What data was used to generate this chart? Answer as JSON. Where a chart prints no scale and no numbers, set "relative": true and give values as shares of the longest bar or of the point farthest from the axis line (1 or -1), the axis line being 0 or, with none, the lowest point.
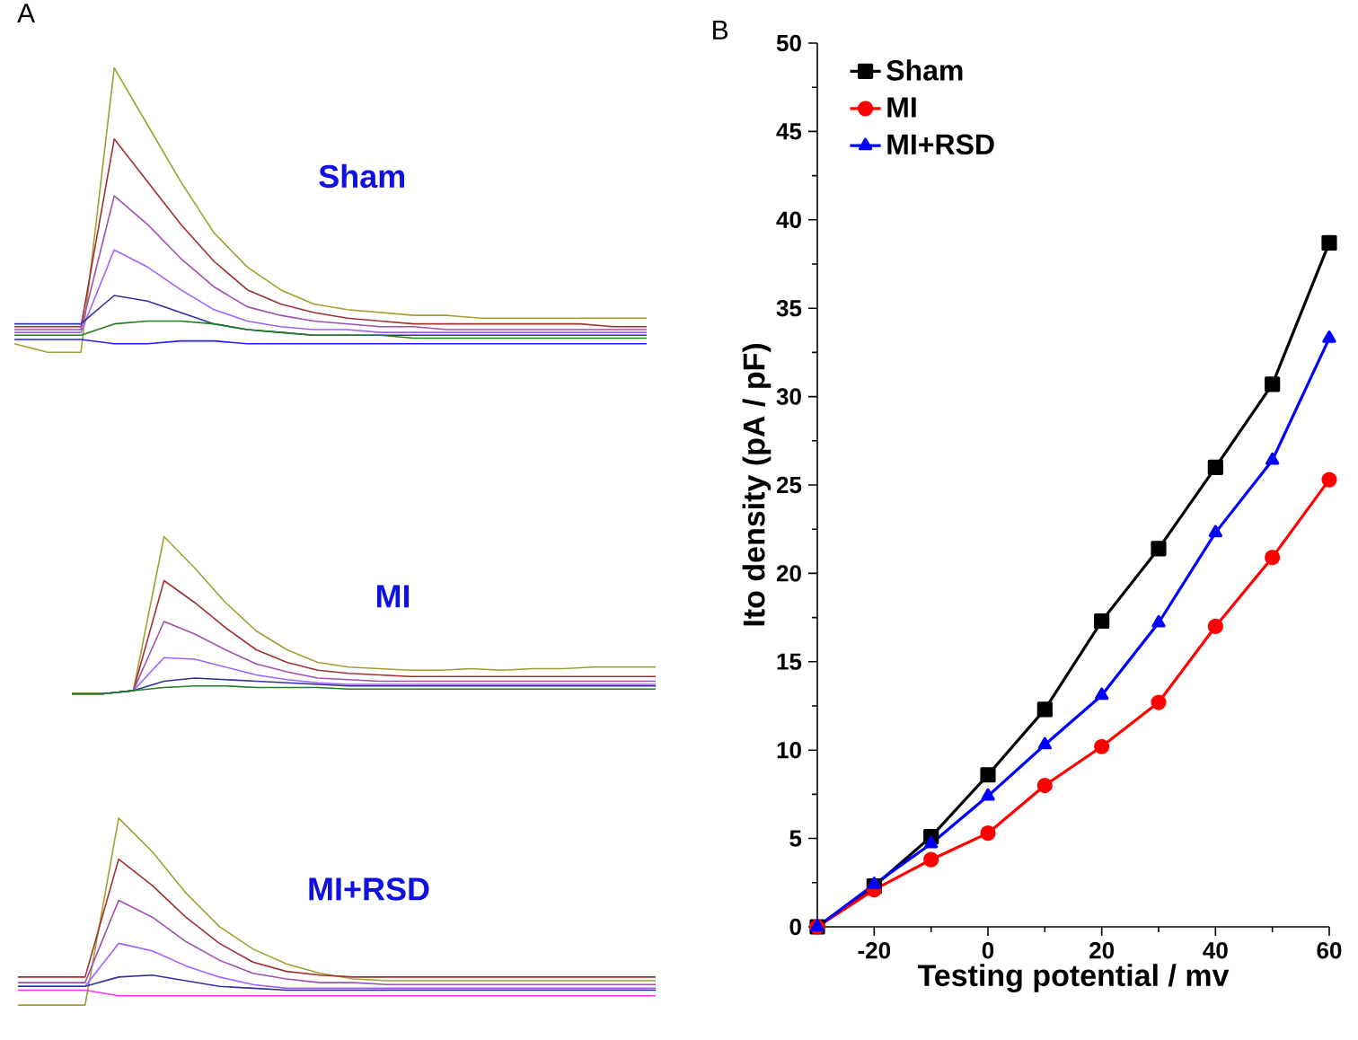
{
  "chart_data": [
    {
      "type": "line",
      "relative": true,
      "title": "A",
      "annotations": [
        "Sham"
      ],
      "categories": [
        null,
        null,
        null,
        null,
        null,
        null,
        null,
        null,
        null,
        null,
        null,
        null,
        null,
        null,
        null,
        null,
        null,
        null,
        null,
        null
      ],
      "series": [
        {
          "color": "#a0a030",
          "values": [
            0.03,
            0.0,
            0.0,
            1.0,
            0.8,
            0.6,
            0.42,
            0.3,
            0.22,
            0.17,
            0.15,
            0.14,
            0.13,
            0.13,
            0.12,
            0.12,
            0.12,
            0.12,
            0.12,
            0.12
          ]
        },
        {
          "color": "#a03030",
          "values": [
            0.09,
            0.09,
            0.09,
            0.75,
            0.6,
            0.45,
            0.32,
            0.22,
            0.17,
            0.14,
            0.12,
            0.11,
            0.1,
            0.1,
            0.1,
            0.1,
            0.1,
            0.1,
            0.09,
            0.09
          ]
        },
        {
          "color": "#a050b0",
          "values": [
            0.08,
            0.08,
            0.08,
            0.55,
            0.45,
            0.33,
            0.23,
            0.16,
            0.13,
            0.11,
            0.1,
            0.09,
            0.09,
            0.08,
            0.08,
            0.08,
            0.08,
            0.08,
            0.08,
            0.08
          ]
        },
        {
          "color": "#a060ff",
          "values": [
            0.07,
            0.07,
            0.07,
            0.36,
            0.3,
            0.22,
            0.15,
            0.11,
            0.09,
            0.08,
            0.08,
            0.07,
            0.07,
            0.07,
            0.07,
            0.07,
            0.07,
            0.07,
            0.07,
            0.07
          ]
        },
        {
          "color": "#3030a0",
          "values": [
            0.1,
            0.1,
            0.1,
            0.2,
            0.18,
            0.14,
            0.1,
            0.08,
            0.07,
            0.06,
            0.06,
            0.06,
            0.06,
            0.06,
            0.06,
            0.06,
            0.06,
            0.06,
            0.06,
            0.06
          ]
        },
        {
          "color": "#208020",
          "values": [
            0.06,
            0.06,
            0.06,
            0.1,
            0.11,
            0.11,
            0.1,
            0.08,
            0.07,
            0.06,
            0.06,
            0.06,
            0.05,
            0.05,
            0.05,
            0.05,
            0.05,
            0.05,
            0.05,
            0.05
          ]
        },
        {
          "color": "#2020ff",
          "values": [
            0.045,
            0.045,
            0.045,
            0.03,
            0.03,
            0.04,
            0.04,
            0.03,
            0.03,
            0.03,
            0.03,
            0.03,
            0.03,
            0.03,
            0.03,
            0.03,
            0.03,
            0.03,
            0.03,
            0.03
          ]
        }
      ]
    },
    {
      "type": "line",
      "relative": true,
      "annotations": [
        "MI"
      ],
      "categories": [
        null,
        null,
        null,
        null,
        null,
        null,
        null,
        null,
        null,
        null,
        null,
        null,
        null,
        null,
        null,
        null,
        null,
        null,
        null,
        null
      ],
      "series": [
        {
          "color": "#a0a030",
          "values": [
            0.0,
            0.0,
            0.02,
            1.0,
            0.8,
            0.58,
            0.4,
            0.28,
            0.2,
            0.17,
            0.16,
            0.15,
            0.15,
            0.16,
            0.15,
            0.16,
            0.16,
            0.17,
            0.17,
            0.17
          ]
        },
        {
          "color": "#a03030",
          "values": [
            0.0,
            0.0,
            0.02,
            0.72,
            0.58,
            0.42,
            0.28,
            0.2,
            0.15,
            0.13,
            0.12,
            0.11,
            0.11,
            0.11,
            0.11,
            0.11,
            0.11,
            0.11,
            0.11,
            0.11
          ]
        },
        {
          "color": "#a050b0",
          "values": [
            0.0,
            0.0,
            0.02,
            0.46,
            0.38,
            0.28,
            0.19,
            0.14,
            0.1,
            0.09,
            0.08,
            0.08,
            0.08,
            0.08,
            0.08,
            0.08,
            0.08,
            0.08,
            0.08,
            0.08
          ]
        },
        {
          "color": "#a060ff",
          "values": [
            0.0,
            0.0,
            0.02,
            0.23,
            0.22,
            0.17,
            0.12,
            0.09,
            0.07,
            0.06,
            0.06,
            0.06,
            0.06,
            0.06,
            0.06,
            0.06,
            0.06,
            0.06,
            0.06,
            0.06
          ]
        },
        {
          "color": "#3030a0",
          "values": [
            0.0,
            0.0,
            0.02,
            0.08,
            0.1,
            0.09,
            0.08,
            0.07,
            0.06,
            0.05,
            0.05,
            0.05,
            0.05,
            0.05,
            0.05,
            0.05,
            0.05,
            0.05,
            0.05,
            0.05
          ]
        },
        {
          "color": "#208020",
          "values": [
            0.0,
            0.0,
            0.02,
            0.04,
            0.05,
            0.05,
            0.04,
            0.04,
            0.04,
            0.03,
            0.03,
            0.03,
            0.03,
            0.03,
            0.03,
            0.03,
            0.03,
            0.03,
            0.03,
            0.03
          ]
        }
      ]
    },
    {
      "type": "line",
      "relative": true,
      "annotations": [
        "MI+RSD"
      ],
      "categories": [
        null,
        null,
        null,
        null,
        null,
        null,
        null,
        null,
        null,
        null,
        null,
        null,
        null,
        null,
        null,
        null,
        null,
        null,
        null,
        null
      ],
      "series": [
        {
          "color": "#a0a030",
          "values": [
            0.0,
            0.0,
            0.0,
            1.0,
            0.82,
            0.6,
            0.42,
            0.3,
            0.22,
            0.17,
            0.14,
            0.13,
            0.13,
            0.13,
            0.13,
            0.13,
            0.13,
            0.13,
            0.13,
            0.13
          ]
        },
        {
          "color": "#a03030",
          "values": [
            0.15,
            0.15,
            0.15,
            0.78,
            0.64,
            0.47,
            0.33,
            0.23,
            0.18,
            0.16,
            0.15,
            0.15,
            0.15,
            0.15,
            0.15,
            0.15,
            0.15,
            0.15,
            0.15,
            0.15
          ]
        },
        {
          "color": "#a050b0",
          "values": [
            0.12,
            0.12,
            0.12,
            0.56,
            0.47,
            0.34,
            0.24,
            0.17,
            0.14,
            0.12,
            0.12,
            0.11,
            0.11,
            0.11,
            0.11,
            0.11,
            0.11,
            0.11,
            0.11,
            0.11
          ]
        },
        {
          "color": "#a060ff",
          "values": [
            0.1,
            0.1,
            0.1,
            0.33,
            0.29,
            0.21,
            0.15,
            0.11,
            0.09,
            0.09,
            0.09,
            0.09,
            0.09,
            0.09,
            0.09,
            0.09,
            0.09,
            0.09,
            0.09,
            0.09
          ]
        },
        {
          "color": "#3030a0",
          "values": [
            0.1,
            0.1,
            0.1,
            0.15,
            0.16,
            0.13,
            0.1,
            0.09,
            0.08,
            0.08,
            0.08,
            0.08,
            0.08,
            0.08,
            0.08,
            0.08,
            0.08,
            0.08,
            0.08,
            0.08
          ]
        },
        {
          "color": "#ff30ff",
          "values": [
            0.08,
            0.08,
            0.08,
            0.05,
            0.05,
            0.05,
            0.05,
            0.05,
            0.05,
            0.05,
            0.05,
            0.05,
            0.05,
            0.05,
            0.05,
            0.05,
            0.05,
            0.05,
            0.05,
            0.05
          ]
        }
      ]
    },
    {
      "type": "line",
      "title": "B",
      "xlabel": "Testing potential / mv",
      "ylabel": "Ito density (pA / pF)",
      "x": [
        -30,
        -20,
        -10,
        0,
        10,
        20,
        30,
        40,
        50,
        60
      ],
      "xlim": [
        -30,
        60
      ],
      "xticks": [
        -20,
        0,
        20,
        40,
        60
      ],
      "ylim": [
        0,
        50
      ],
      "yticks": [
        0,
        5,
        10,
        15,
        20,
        25,
        30,
        35,
        40,
        45,
        50
      ],
      "legend": "top left",
      "line_style": "solid",
      "series": [
        {
          "name": "Sham",
          "color": "#000000",
          "marker": "square",
          "values": [
            0,
            2.3,
            5.1,
            8.6,
            12.3,
            17.3,
            21.4,
            26.0,
            30.7,
            38.7
          ]
        },
        {
          "name": "MI",
          "color": "#ff0000",
          "marker": "circle",
          "values": [
            0,
            2.1,
            3.8,
            5.3,
            8.0,
            10.2,
            12.7,
            17.0,
            20.9,
            25.3
          ]
        },
        {
          "name": "MI+RSD",
          "color": "#0000ff",
          "marker": "triangle",
          "values": [
            0,
            2.4,
            4.7,
            7.4,
            10.3,
            13.1,
            17.2,
            22.3,
            26.4,
            33.3
          ]
        }
      ]
    }
  ]
}
